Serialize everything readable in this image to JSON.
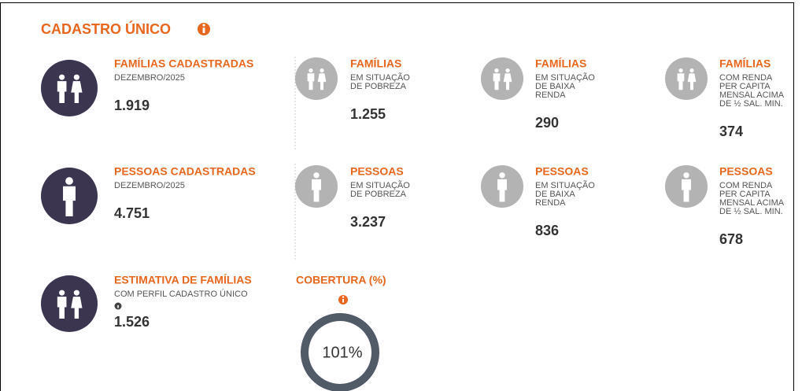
{
  "header": {
    "title": "CADASTRO ÚNICO"
  },
  "rows": [
    {
      "cards": [
        {
          "title": "FAMÍLIAS CADASTRADAS",
          "subtitle_lines": [
            "DEZEMBRO/2025"
          ],
          "value": "1.919"
        },
        {
          "title": "FAMÍLIAS",
          "subtitle_lines": [
            "EM SITUAÇÃO",
            "DE POBREZA"
          ],
          "value": "1.255"
        },
        {
          "title": "FAMÍLIAS",
          "subtitle_lines": [
            "EM SITUAÇÃO",
            "DE BAIXA",
            "RENDA"
          ],
          "value": "290"
        },
        {
          "title": "FAMÍLIAS",
          "subtitle_lines": [
            "COM RENDA",
            "PER CAPITA",
            "MENSAL ACIMA",
            "DE ½ SAL. MIN."
          ],
          "value": "374"
        }
      ]
    },
    {
      "cards": [
        {
          "title": "PESSOAS CADASTRADAS",
          "subtitle_lines": [
            "DEZEMBRO/2025"
          ],
          "value": "4.751"
        },
        {
          "title": "PESSOAS",
          "subtitle_lines": [
            "EM SITUAÇÃO",
            "DE POBREZA"
          ],
          "value": "3.237"
        },
        {
          "title": "PESSOAS",
          "subtitle_lines": [
            "EM SITUAÇÃO",
            "DE BAIXA",
            "RENDA"
          ],
          "value": "836"
        },
        {
          "title": "PESSOAS",
          "subtitle_lines": [
            "COM RENDA",
            "PER CAPITA",
            "MENSAL ACIMA",
            "DE ½ SAL. MIN."
          ],
          "value": "678"
        }
      ]
    }
  ],
  "estimate": {
    "title": "ESTIMATIVA DE FAMÍLIAS",
    "subtitle_lines": [
      "COM PERFIL CADASTRO ÚNICO"
    ],
    "value": "1.526"
  },
  "coverage": {
    "title": "COBERTURA (%)",
    "value": 101,
    "value_label": "101%"
  }
}
